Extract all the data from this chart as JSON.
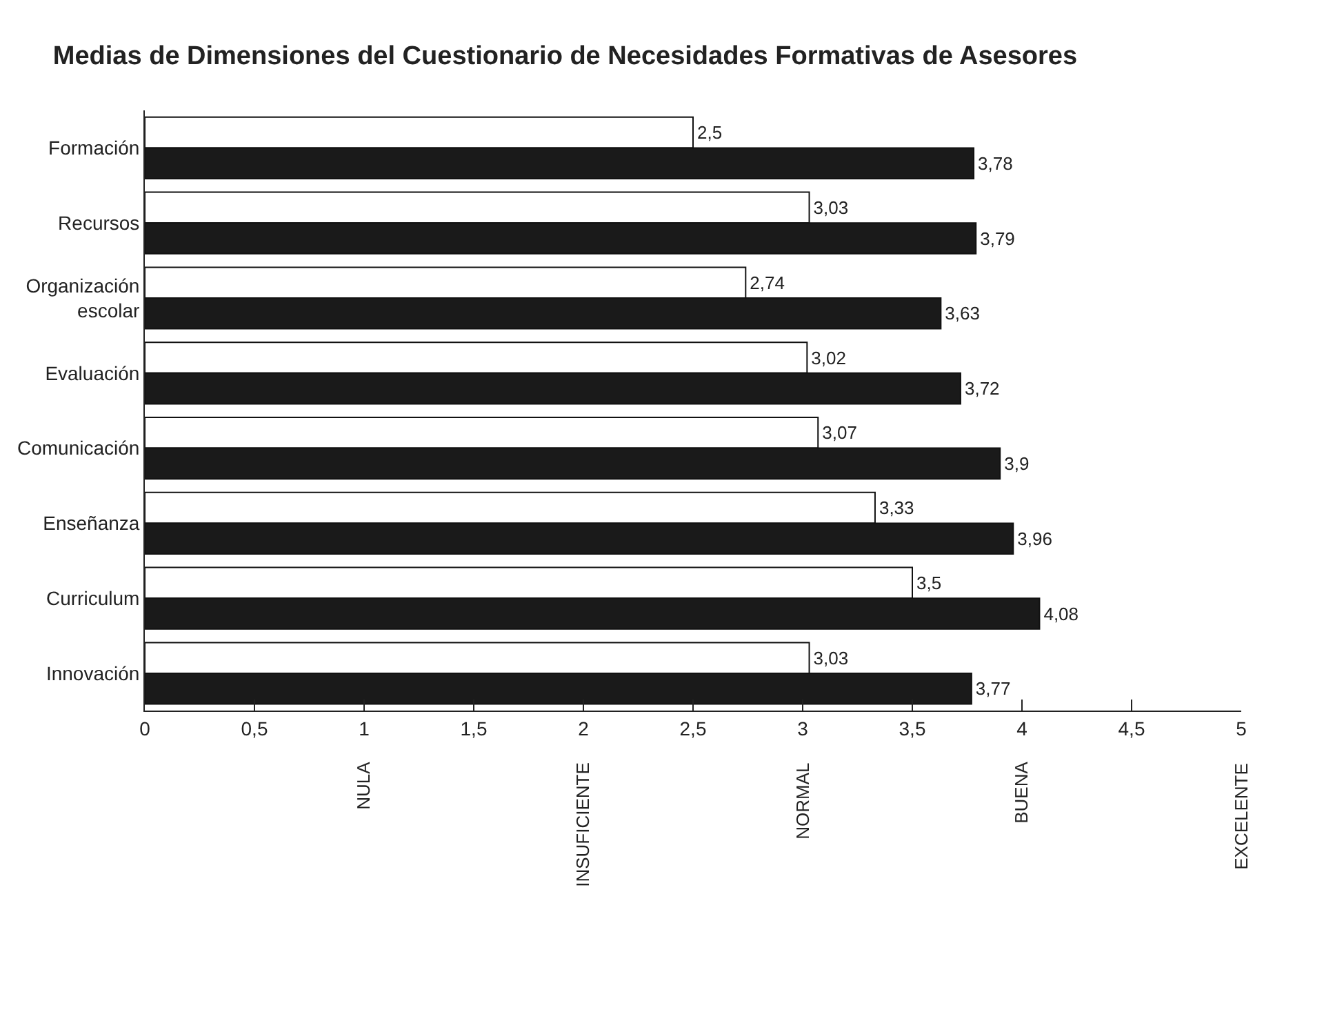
{
  "chart_data": {
    "type": "bar",
    "orientation": "horizontal",
    "title": "Medias de Dimensiones del Cuestionario de Necesidades Formativas de Asesores",
    "categories": [
      "Formación",
      "Recursos",
      "Organización\nescolar",
      "Evaluación",
      "Comunicación",
      "Enseñanza",
      "Curriculum",
      "Innovación"
    ],
    "series": [
      {
        "color": "#ffffff",
        "values": [
          2.5,
          3.03,
          2.74,
          3.02,
          3.07,
          3.33,
          3.5,
          3.03
        ],
        "value_labels": [
          "2,5",
          "3,03",
          "2,74",
          "3,02",
          "3,07",
          "3,33",
          "3,5",
          "3,03"
        ]
      },
      {
        "color": "#1a1a1a",
        "values": [
          3.78,
          3.79,
          3.63,
          3.72,
          3.9,
          3.96,
          4.08,
          3.77
        ],
        "value_labels": [
          "3,78",
          "3,79",
          "3,63",
          "3,72",
          "3,9",
          "3,96",
          "4,08",
          "3,77"
        ]
      }
    ],
    "xlim": [
      0,
      5
    ],
    "xticks": [
      0,
      {
        "value": 0.5,
        "label": "0,5"
      },
      1,
      {
        "value": 1.5,
        "label": "1,5"
      },
      2,
      {
        "value": 2.5,
        "label": "2,5"
      },
      3,
      {
        "value": 3.5,
        "label": "3,5"
      },
      4,
      {
        "value": 4.5,
        "label": "4,5"
      },
      5
    ],
    "annotations": [
      "NULA",
      "INSUFICIENTE",
      "NORMAL",
      "BUENA",
      "EXCELENTE"
    ],
    "data_labels": false
  }
}
